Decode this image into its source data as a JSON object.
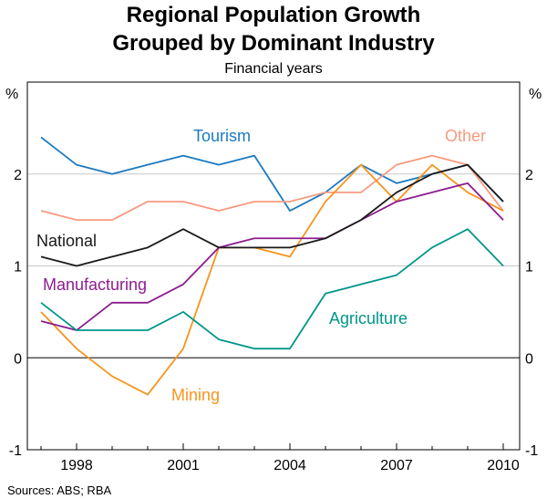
{
  "chart_data": {
    "type": "line",
    "title": [
      "Regional Population Growth",
      "Grouped by Dominant Industry"
    ],
    "subtitle": "Financial years",
    "ylabel_left": "%",
    "ylabel_right": "%",
    "source": "Sources: ABS; RBA",
    "ylim": [
      -1,
      3
    ],
    "yticks": [
      -1,
      0,
      1,
      2
    ],
    "xticks": [
      "1998",
      "2001",
      "2004",
      "2007",
      "2010"
    ],
    "x": [
      1997,
      1998,
      1999,
      2000,
      2001,
      2002,
      2003,
      2004,
      2005,
      2006,
      2007,
      2008,
      2009,
      2010
    ],
    "grid": true,
    "legend": "inline labels",
    "series": [
      {
        "name": "Tourism",
        "color": "#1B7AC0",
        "values": [
          2.4,
          2.1,
          2.0,
          2.1,
          2.2,
          2.1,
          2.2,
          1.6,
          1.8,
          2.1,
          1.9,
          2.0,
          2.1,
          1.7
        ]
      },
      {
        "name": "Other",
        "color": "#F79A80",
        "values": [
          1.6,
          1.5,
          1.5,
          1.7,
          1.7,
          1.6,
          1.7,
          1.7,
          1.8,
          1.8,
          2.1,
          2.2,
          2.1,
          1.6
        ]
      },
      {
        "name": "Mining",
        "color": "#F7941D",
        "values": [
          0.5,
          0.1,
          -0.2,
          -0.4,
          0.1,
          1.2,
          1.2,
          1.1,
          1.7,
          2.1,
          1.7,
          2.1,
          1.8,
          1.6
        ]
      },
      {
        "name": "Manufacturing",
        "color": "#8C1D8F",
        "values": [
          0.4,
          0.3,
          0.6,
          0.6,
          0.8,
          1.2,
          1.3,
          1.3,
          1.3,
          1.5,
          1.7,
          1.8,
          1.9,
          1.5
        ]
      },
      {
        "name": "Agriculture",
        "color": "#00968A",
        "values": [
          0.6,
          0.3,
          0.3,
          0.3,
          0.5,
          0.2,
          0.1,
          0.1,
          0.7,
          0.8,
          0.9,
          1.2,
          1.4,
          1.0
        ]
      },
      {
        "name": "National",
        "color": "#1A1A1A",
        "values": [
          1.1,
          1.0,
          1.1,
          1.2,
          1.4,
          1.2,
          1.2,
          1.2,
          1.3,
          1.5,
          1.8,
          2.0,
          2.1,
          1.7
        ]
      }
    ]
  }
}
